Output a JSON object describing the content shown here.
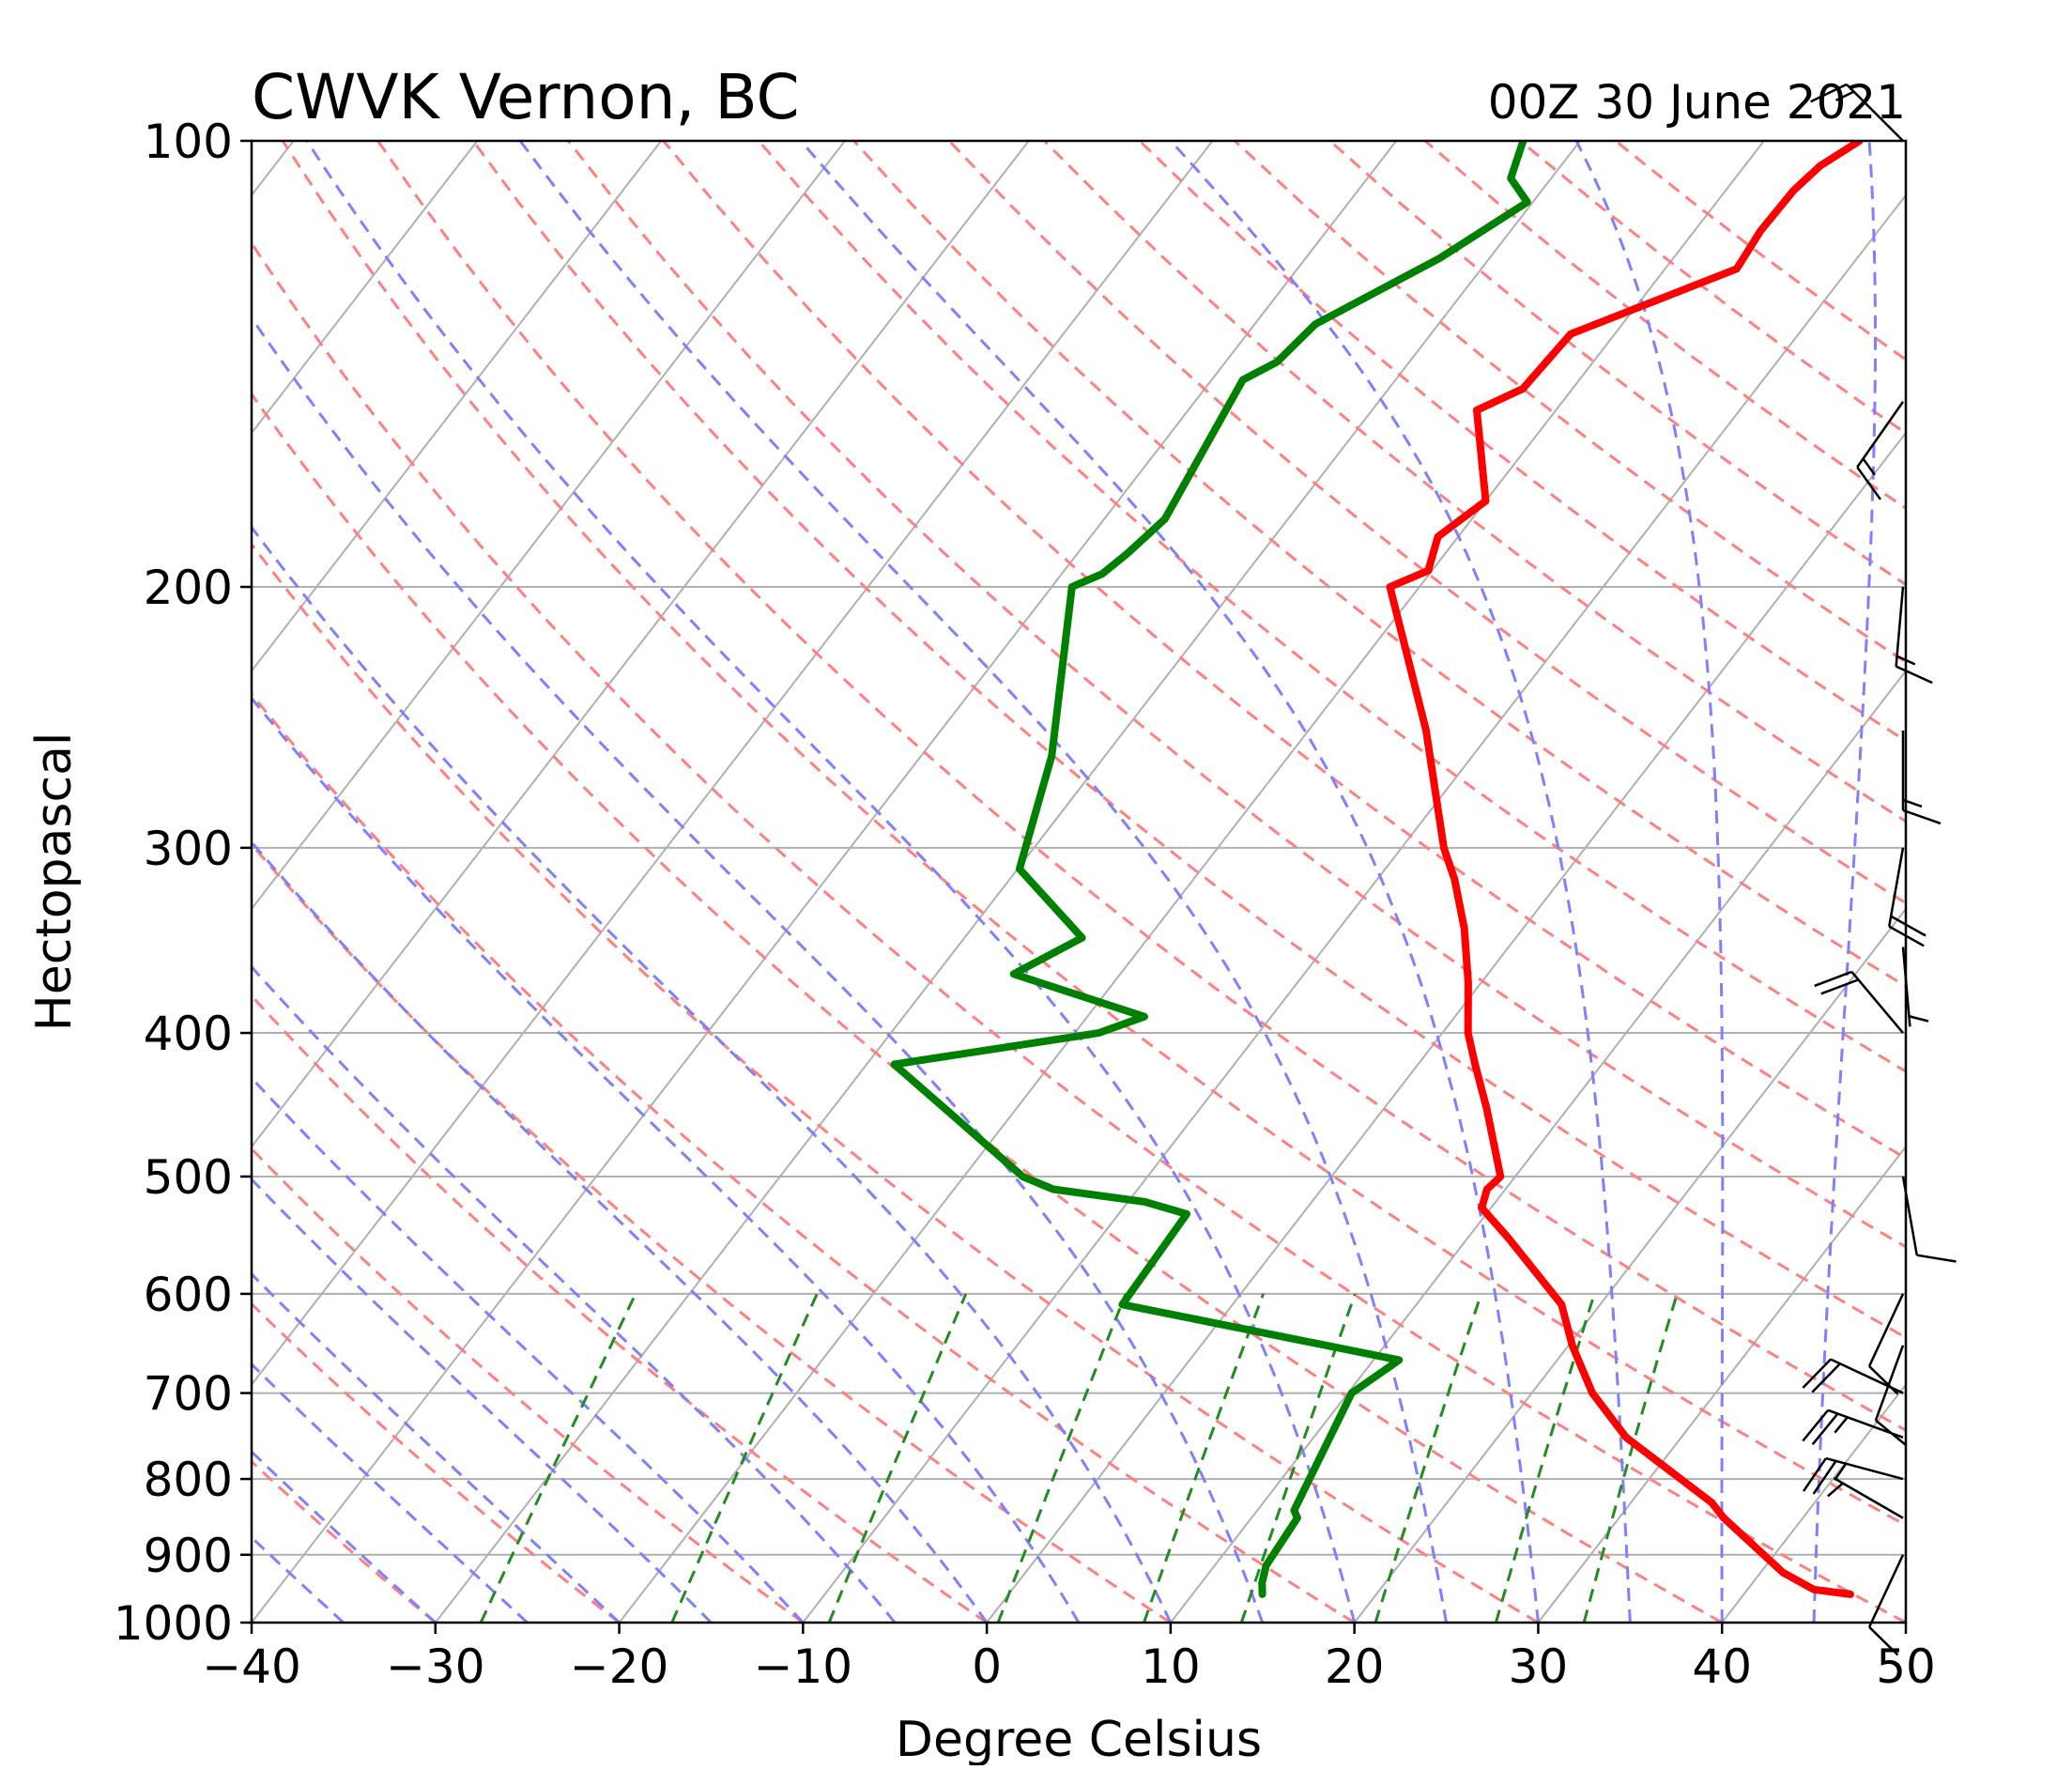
{
  "chart_data": {
    "type": "skew-t",
    "title": "CWVK Vernon, BC",
    "subtitle": "00Z 30 June 2021",
    "xlabel": "Degree Celsius",
    "ylabel": "Hectopascal",
    "xlim": [
      -40,
      50
    ],
    "ylim": [
      1000,
      100
    ],
    "y_scale": "log",
    "x_ticks": [
      "−40",
      "−30",
      "−20",
      "−10",
      "0",
      "10",
      "20",
      "30",
      "40",
      "50"
    ],
    "x_tick_values": [
      -40,
      -30,
      -20,
      -10,
      0,
      10,
      20,
      30,
      40,
      50
    ],
    "y_ticks": [
      "100",
      "200",
      "300",
      "400",
      "500",
      "600",
      "700",
      "800",
      "900",
      "1000"
    ],
    "y_tick_values": [
      100,
      200,
      300,
      400,
      500,
      600,
      700,
      800,
      900,
      1000
    ],
    "grid": true,
    "colors": {
      "temperature": "#ff0000",
      "dewpoint": "#008000",
      "isotherms": "#b0b0b0",
      "dry_adiabats": "#ff8080",
      "moist_adiabats": "#8080ff",
      "mixing_ratio": "#228b22",
      "wind_barbs": "#000000"
    },
    "series": [
      {
        "key": "temperature",
        "points": [
          {
            "p": 957,
            "t": 45.8
          },
          {
            "p": 950,
            "t": 43.6
          },
          {
            "p": 925,
            "t": 41.2
          },
          {
            "p": 850,
            "t": 35.7
          },
          {
            "p": 830,
            "t": 34.4
          },
          {
            "p": 750,
            "t": 27.0
          },
          {
            "p": 700,
            "t": 23.3
          },
          {
            "p": 650,
            "t": 20.2
          },
          {
            "p": 610,
            "t": 17.9
          },
          {
            "p": 550,
            "t": 12.2
          },
          {
            "p": 525,
            "t": 9.5
          },
          {
            "p": 510,
            "t": 9.0
          },
          {
            "p": 500,
            "t": 9.2
          },
          {
            "p": 450,
            "t": 5.6
          },
          {
            "p": 420,
            "t": 3.1
          },
          {
            "p": 400,
            "t": 1.4
          },
          {
            "p": 370,
            "t": -0.7
          },
          {
            "p": 340,
            "t": -3.2
          },
          {
            "p": 315,
            "t": -5.8
          },
          {
            "p": 300,
            "t": -7.7
          },
          {
            "p": 250,
            "t": -13.6
          },
          {
            "p": 200,
            "t": -21.6
          },
          {
            "p": 195,
            "t": -20.2
          },
          {
            "p": 185,
            "t": -21.1
          },
          {
            "p": 175,
            "t": -20.0
          },
          {
            "p": 152,
            "t": -24.3
          },
          {
            "p": 147,
            "t": -22.7
          },
          {
            "p": 135,
            "t": -22.4
          },
          {
            "p": 122,
            "t": -16.1
          },
          {
            "p": 115,
            "t": -16.4
          },
          {
            "p": 108,
            "t": -16.3
          },
          {
            "p": 104,
            "t": -15.9
          },
          {
            "p": 100,
            "t": -14.8
          }
        ]
      },
      {
        "key": "dewpoint",
        "points": [
          {
            "p": 957,
            "t": 13.8
          },
          {
            "p": 940,
            "t": 13.3
          },
          {
            "p": 915,
            "t": 12.8
          },
          {
            "p": 850,
            "t": 12.5
          },
          {
            "p": 840,
            "t": 12.0
          },
          {
            "p": 700,
            "t": 10.2
          },
          {
            "p": 665,
            "t": 11.4
          },
          {
            "p": 610,
            "t": -6.0
          },
          {
            "p": 530,
            "t": -6.3
          },
          {
            "p": 520,
            "t": -9.1
          },
          {
            "p": 510,
            "t": -14.6
          },
          {
            "p": 500,
            "t": -16.8
          },
          {
            "p": 420,
            "t": -28.5
          },
          {
            "p": 400,
            "t": -18.7
          },
          {
            "p": 390,
            "t": -16.9
          },
          {
            "p": 365,
            "t": -25.8
          },
          {
            "p": 345,
            "t": -23.6
          },
          {
            "p": 310,
            "t": -29.9
          },
          {
            "p": 260,
            "t": -32.9
          },
          {
            "p": 200,
            "t": -38.9
          },
          {
            "p": 196,
            "t": -37.8
          },
          {
            "p": 190,
            "t": -37.3
          },
          {
            "p": 180,
            "t": -36.7
          },
          {
            "p": 145,
            "t": -38.3
          },
          {
            "p": 141,
            "t": -37.2
          },
          {
            "p": 133,
            "t": -36.7
          },
          {
            "p": 120,
            "t": -32.7
          },
          {
            "p": 110,
            "t": -30.3
          },
          {
            "p": 106,
            "t": -32.2
          },
          {
            "p": 100,
            "t": -33.1
          }
        ]
      }
    ],
    "wind_barbs": [
      {
        "p": 100,
        "speed_kt": 15,
        "dir_deg": 315
      },
      {
        "p": 150,
        "speed_kt": 15,
        "dir_deg": 215
      },
      {
        "p": 200,
        "speed_kt": 15,
        "dir_deg": 185
      },
      {
        "p": 250,
        "speed_kt": 15,
        "dir_deg": 180
      },
      {
        "p": 300,
        "speed_kt": 20,
        "dir_deg": 190
      },
      {
        "p": 350,
        "speed_kt": 5,
        "dir_deg": 175
      },
      {
        "p": 400,
        "speed_kt": 20,
        "dir_deg": 320
      },
      {
        "p": 500,
        "speed_kt": 10,
        "dir_deg": 170
      },
      {
        "p": 600,
        "speed_kt": 10,
        "dir_deg": 205
      },
      {
        "p": 650,
        "speed_kt": 10,
        "dir_deg": 200
      },
      {
        "p": 700,
        "speed_kt": 20,
        "dir_deg": 295
      },
      {
        "p": 750,
        "speed_kt": 25,
        "dir_deg": 290
      },
      {
        "p": 800,
        "speed_kt": 25,
        "dir_deg": 285
      },
      {
        "p": 850,
        "speed_kt": 5,
        "dir_deg": 300
      },
      {
        "p": 900,
        "speed_kt": 10,
        "dir_deg": 205
      }
    ]
  }
}
